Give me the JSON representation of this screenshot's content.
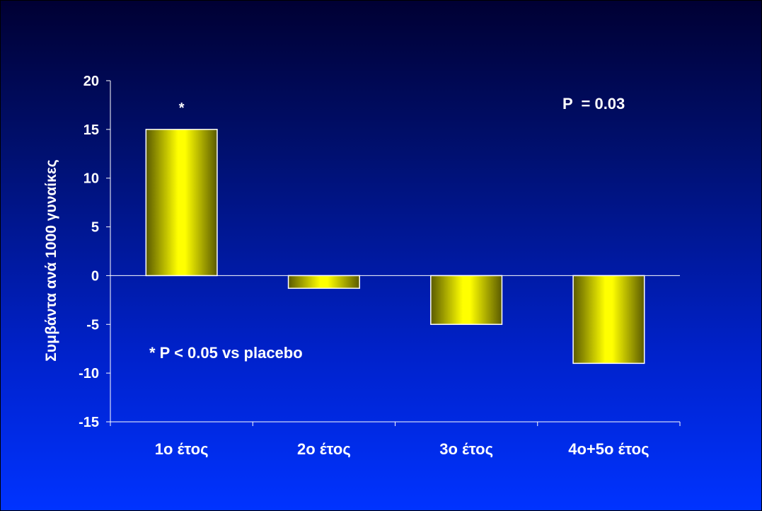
{
  "chart_data": {
    "type": "bar",
    "categories": [
      "1ο έτος",
      "2ο έτος",
      "3ο έτος",
      "4ο+5ο έτος"
    ],
    "values": [
      15,
      -1.3,
      -5,
      -9
    ],
    "ylabel": "Συμβάντα ανά 1000 γυναίκες",
    "ylim": [
      -15,
      20
    ],
    "yticks": [
      20,
      15,
      10,
      5,
      0,
      -5,
      -10,
      -15
    ],
    "bar_annotations": [
      "*",
      "",
      "",
      ""
    ],
    "annotations": {
      "p_value": "P  = 0.03",
      "footnote": "* P < 0.05 vs placebo"
    },
    "grid": false,
    "colors": {
      "bar_light": "#ffff00",
      "bar_dark": "#5a5a00",
      "text": "#ffffff",
      "axis": "#ffffff"
    }
  }
}
